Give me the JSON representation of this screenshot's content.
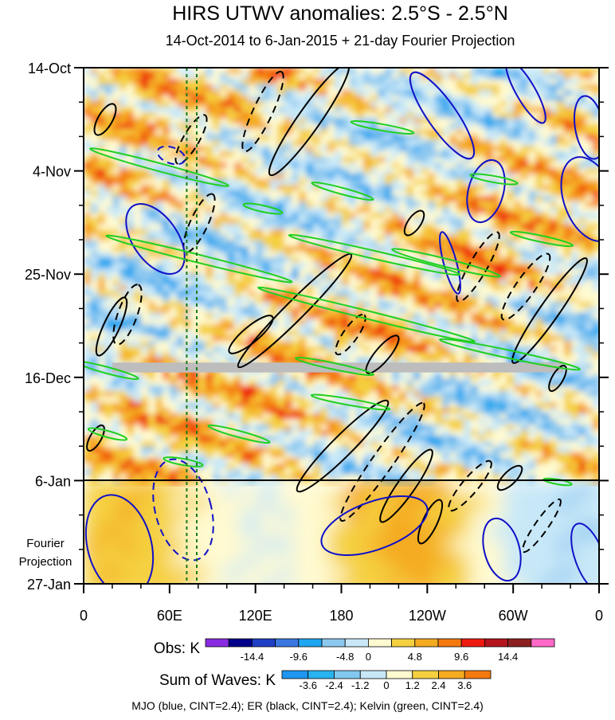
{
  "chart_data": {
    "type": "heatmap",
    "title": "HIRS UTWV anomalies: 2.5°S - 2.5°N",
    "subtitle": "14-Oct-2014 to 6-Jan-2015 + 21-day Fourier Projection",
    "ytick_labels": [
      "14-Oct",
      "4-Nov",
      "25-Nov",
      "16-Dec",
      "6-Jan",
      "27-Jan"
    ],
    "xtick_labels": [
      "0",
      "60E",
      "120E",
      "180",
      "120W",
      "60W",
      "0"
    ],
    "x_longitudes": [
      0,
      60,
      120,
      180,
      240,
      300,
      360
    ],
    "y_days": [
      0,
      21,
      42,
      63,
      84,
      105
    ],
    "obs_end_day": 84,
    "projection_label": "Fourier Projection",
    "dashed_markers_lon": [
      72,
      79
    ],
    "missing_data_band": {
      "day_start": 60,
      "day_end": 62
    },
    "obs_legend": {
      "label": "Obs: K",
      "tick_labels": [
        "-14.4",
        "-9.6",
        "-4.8",
        "0",
        "4.8",
        "9.6",
        "14.4"
      ],
      "colors": [
        "#8a2be2",
        "#00008b",
        "#1f3fc6",
        "#3a78e0",
        "#1fa6f0",
        "#8cc8f0",
        "#c8e8f8",
        "#fffad0",
        "#f5d040",
        "#f5ab20",
        "#f47a10",
        "#ee1a10",
        "#b4141e",
        "#8c2020",
        "#ff69c8"
      ]
    },
    "waves_legend": {
      "label": "Sum of Waves: K",
      "tick_labels": [
        "-3.6",
        "-2.4",
        "-1.2",
        "0",
        "1.2",
        "2.4",
        "3.6"
      ],
      "colors": [
        "#1e96f0",
        "#28b4f0",
        "#82c8f0",
        "#c8e8f8",
        "#fffad0",
        "#f5d040",
        "#f5ab20",
        "#f47a10"
      ]
    },
    "footer": "MJO (blue, CINT=2.4); ER (black, CINT=2.4); Kelvin (green, CINT=2.4)",
    "series": [
      {
        "name": "MJO",
        "color": "#1010c8"
      },
      {
        "name": "ER",
        "color": "#000000"
      },
      {
        "name": "Kelvin",
        "color": "#20d020"
      }
    ]
  }
}
